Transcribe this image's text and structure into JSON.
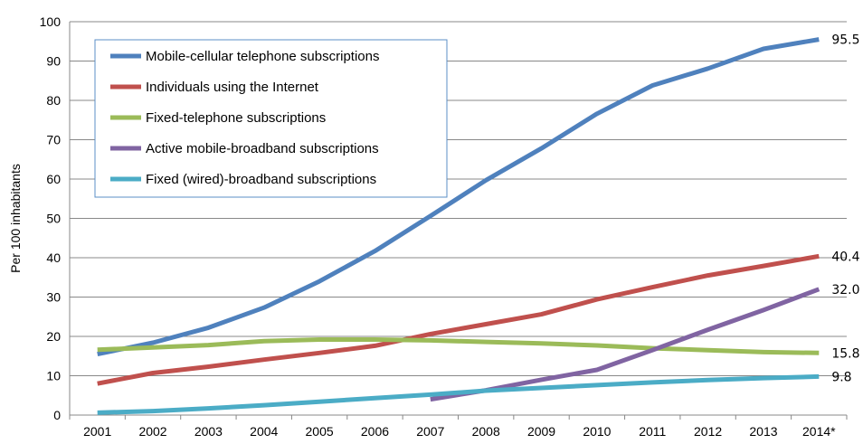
{
  "chart_data": {
    "type": "line",
    "ylabel": "Per 100 inhabitants",
    "ylim": [
      0,
      100
    ],
    "yticks": [
      "0",
      "10",
      "20",
      "30",
      "40",
      "50",
      "60",
      "70",
      "80",
      "90",
      "100"
    ],
    "categories": [
      "2001",
      "2002",
      "2003",
      "2004",
      "2005",
      "2006",
      "2007",
      "2008",
      "2009",
      "2010",
      "2011",
      "2012",
      "2013",
      "2014*"
    ],
    "grid": true,
    "legend_position": "top-left",
    "series": [
      {
        "name": "Mobile-cellular telephone subscriptions",
        "color": "#4f81bd",
        "values": [
          15.5,
          18.4,
          22.2,
          27.3,
          34.0,
          41.7,
          50.6,
          59.7,
          67.8,
          76.6,
          83.8,
          88.1,
          93.1,
          95.5
        ],
        "end_label": "95.5"
      },
      {
        "name": "Individuals using the Internet",
        "color": "#c0504d",
        "values": [
          8.0,
          10.7,
          12.3,
          14.1,
          15.8,
          17.6,
          20.6,
          23.1,
          25.6,
          29.4,
          32.5,
          35.5,
          37.9,
          40.4
        ],
        "end_label": "40.4"
      },
      {
        "name": "Fixed-telephone subscriptions",
        "color": "#9bbb59",
        "values": [
          16.6,
          17.2,
          17.8,
          18.8,
          19.2,
          19.2,
          19.0,
          18.6,
          18.2,
          17.7,
          17.0,
          16.5,
          16.0,
          15.8
        ],
        "end_label": "15.8"
      },
      {
        "name": "Active mobile-broadband subscriptions",
        "color": "#8064a2",
        "values": [
          null,
          null,
          null,
          null,
          null,
          null,
          4.0,
          6.3,
          9.0,
          11.5,
          16.5,
          21.7,
          26.7,
          32.0
        ],
        "end_label": "32.0"
      },
      {
        "name": "Fixed (wired)-broadband subscriptions",
        "color": "#4bacc6",
        "values": [
          0.6,
          1.0,
          1.7,
          2.5,
          3.4,
          4.3,
          5.2,
          6.2,
          6.9,
          7.6,
          8.3,
          8.9,
          9.4,
          9.8
        ],
        "end_label": "9.8"
      }
    ]
  }
}
